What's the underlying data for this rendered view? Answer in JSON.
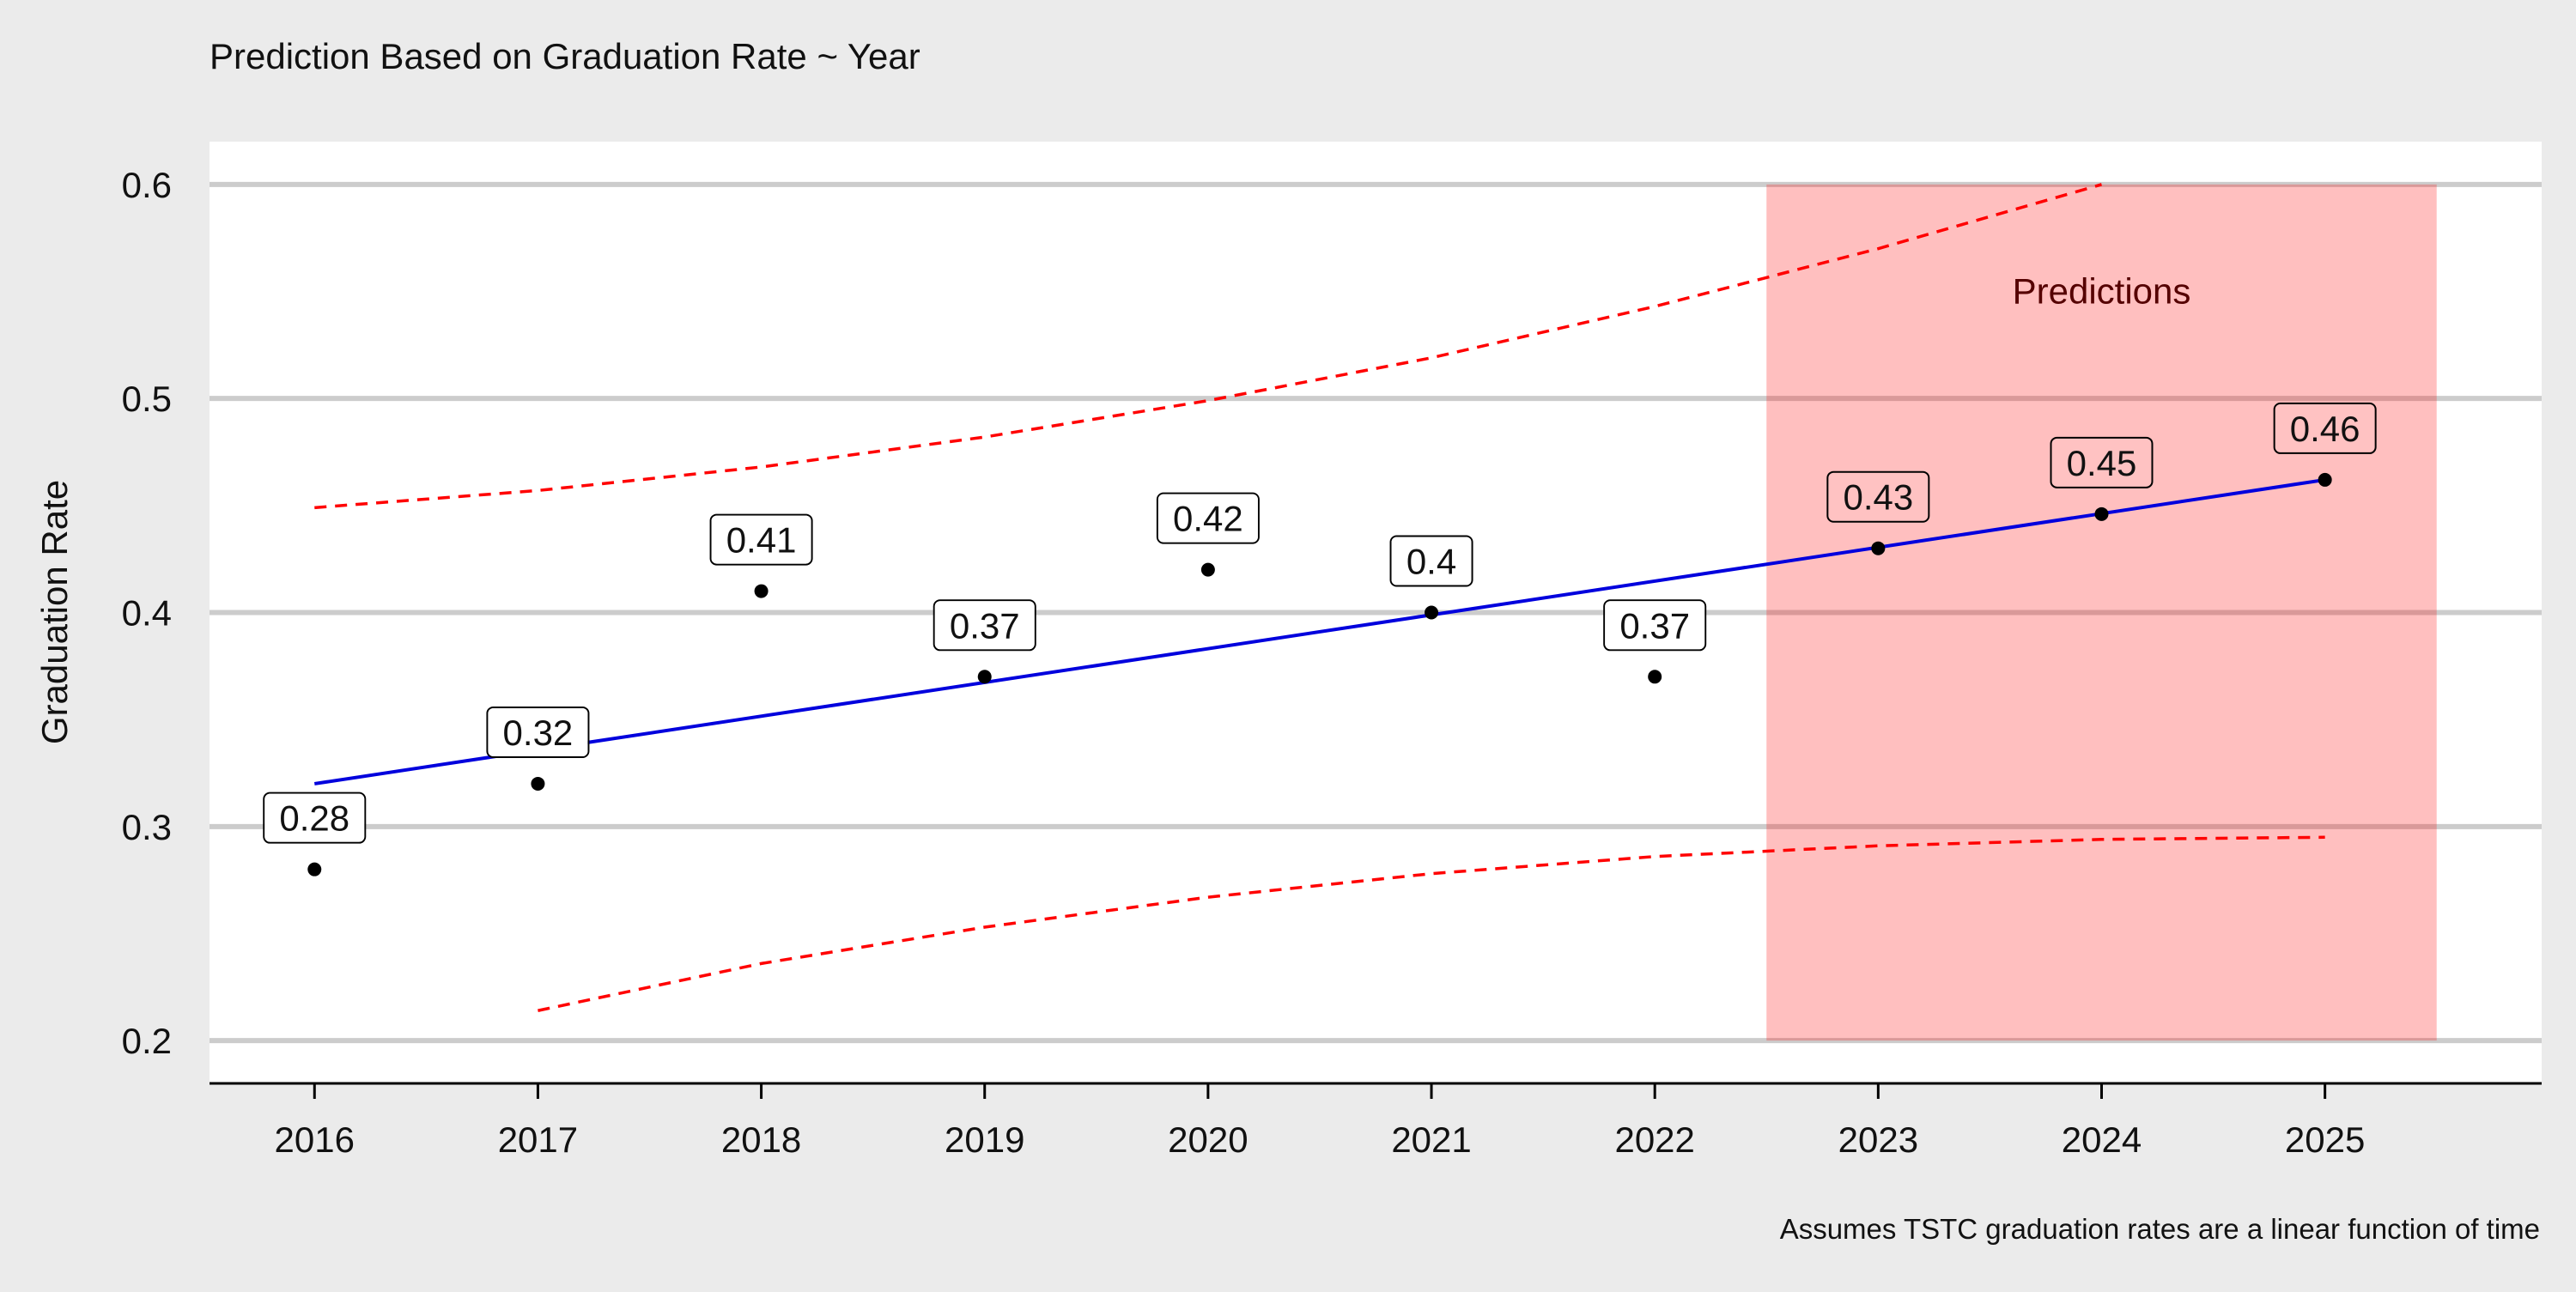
{
  "chart_data": {
    "type": "line",
    "title": "Prediction Based on Graduation Rate ~ Year",
    "caption": "Assumes TSTC graduation rates are a linear function of time",
    "xlabel": "",
    "ylabel": "Graduation Rate",
    "categories": [
      "2016",
      "2017",
      "2018",
      "2019",
      "2020",
      "2021",
      "2022",
      "2023",
      "2024",
      "2025"
    ],
    "xlim": [
      2015.53,
      2025.97
    ],
    "ylim": [
      0.18,
      0.62
    ],
    "y_ticks": [
      0.2,
      0.3,
      0.4,
      0.5,
      0.6
    ],
    "y_tick_labels": [
      "0.2",
      "0.3",
      "0.4",
      "0.5",
      "0.6"
    ],
    "grid": "horizontal",
    "series": [
      {
        "kind": "points",
        "x": [
          2016,
          2017,
          2018,
          2019,
          2020,
          2021,
          2022,
          2023,
          2024,
          2025
        ],
        "values": [
          0.28,
          0.32,
          0.41,
          0.37,
          0.42,
          0.4,
          0.37,
          0.43,
          0.446,
          0.462
        ],
        "labels": [
          "0.28",
          "0.32",
          "0.41",
          "0.37",
          "0.42",
          "0.4",
          "0.37",
          "0.43",
          "0.45",
          "0.46"
        ],
        "color": "#000000"
      },
      {
        "kind": "fit",
        "x": [
          2016,
          2025
        ],
        "values": [
          0.32,
          0.462
        ],
        "color": "#0000dd"
      },
      {
        "kind": "upper-bound",
        "x": [
          2016,
          2017,
          2018,
          2019,
          2020,
          2021,
          2022,
          2023,
          2024
        ],
        "values": [
          0.449,
          0.457,
          0.468,
          0.482,
          0.499,
          0.519,
          0.543,
          0.57,
          0.6
        ],
        "color": "#ff0000",
        "dash": true
      },
      {
        "kind": "lower-bound",
        "x": [
          2017,
          2018,
          2019,
          2020,
          2021,
          2022,
          2023,
          2024,
          2025
        ],
        "values": [
          0.214,
          0.236,
          0.253,
          0.267,
          0.278,
          0.286,
          0.291,
          0.294,
          0.295
        ],
        "color": "#ff0000",
        "dash": true
      }
    ],
    "annotations": [
      {
        "text": "Predictions",
        "x": 2024,
        "y": 0.55,
        "region_x": [
          2022.5,
          2025.5
        ],
        "region_y": [
          0.2,
          0.6
        ],
        "fill": "#ff0000",
        "opacity": 0.25
      }
    ],
    "colors": {
      "background": "#ebebeb",
      "panel": "#ffffff",
      "grid": "#cccccc",
      "axis": "#000000"
    }
  }
}
